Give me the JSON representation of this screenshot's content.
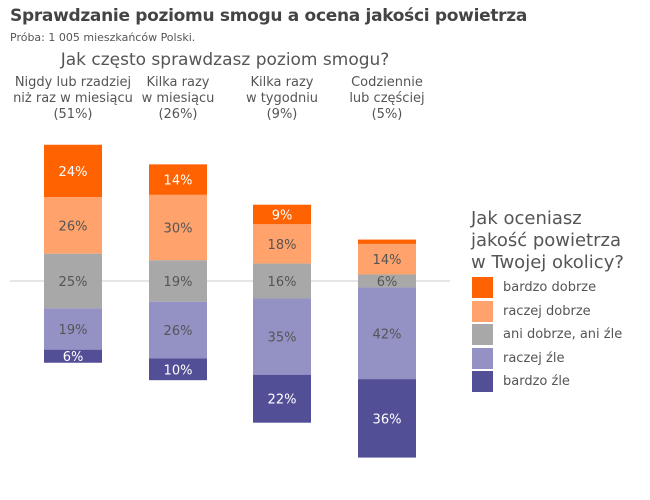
{
  "title": "Sprawdzanie poziomu smogu a ocena jakości powietrza",
  "subtitle": "Próba: 1 005 mieszkańców Polski.",
  "chart_data": {
    "type": "bar",
    "stacked": "diverging",
    "xlabel": "Jak często sprawdzasz poziom smogu?",
    "categories": [
      [
        "Nigdy lub rzadziej",
        "niż raz w miesiącu",
        "(51%)"
      ],
      [
        "Kilka razy",
        "w miesiącu",
        "(26%)"
      ],
      [
        "Kilka razy",
        "w tygodniu",
        "(9%)"
      ],
      [
        "Codziennie",
        "lub częściej",
        "(5%)"
      ]
    ],
    "legend_title": [
      "Jak oceniasz",
      "jakość powietrza",
      "w Twojej okolicy?"
    ],
    "legend_position": "right",
    "series": [
      {
        "name": "bardzo dobrze",
        "color": "#FF6200",
        "values": [
          24,
          14,
          9,
          2
        ],
        "labels": [
          "24%",
          "14%",
          "9%",
          ""
        ]
      },
      {
        "name": "raczej dobrze",
        "color": "#FFA26B",
        "values": [
          26,
          30,
          18,
          14
        ],
        "labels": [
          "26%",
          "30%",
          "18%",
          "14%"
        ]
      },
      {
        "name": "ani dobrze, ani źle",
        "color": "#A8A8A8",
        "values": [
          25,
          19,
          16,
          6
        ],
        "labels": [
          "25%",
          "19%",
          "16%",
          "6%"
        ]
      },
      {
        "name": "raczej źle",
        "color": "#9492C5",
        "values": [
          19,
          26,
          35,
          42
        ],
        "labels": [
          "19%",
          "26%",
          "35%",
          "42%"
        ]
      },
      {
        "name": "bardzo źle",
        "color": "#534F97",
        "values": [
          6,
          10,
          22,
          36
        ],
        "labels": [
          "6%",
          "10%",
          "22%",
          "36%"
        ]
      }
    ],
    "unit": "%"
  }
}
